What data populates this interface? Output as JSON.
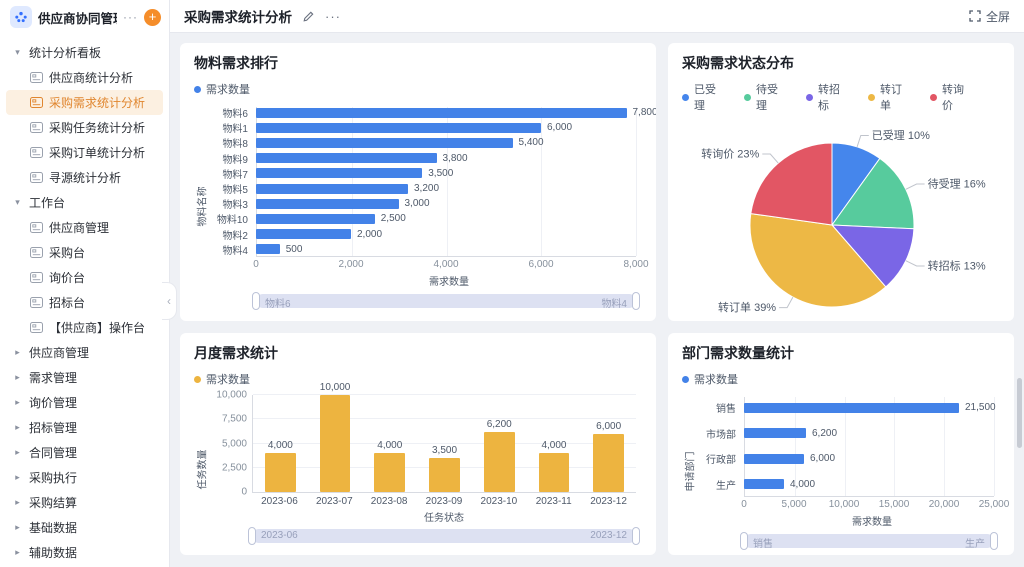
{
  "sidebar": {
    "app_title": "供应商协同管理...",
    "more": "···",
    "add": "+",
    "items": [
      {
        "label": "统计分析看板",
        "kind": "group",
        "expanded": true
      },
      {
        "label": "供应商统计分析",
        "kind": "leaf"
      },
      {
        "label": "采购需求统计分析",
        "kind": "leaf",
        "active": true
      },
      {
        "label": "采购任务统计分析",
        "kind": "leaf"
      },
      {
        "label": "采购订单统计分析",
        "kind": "leaf"
      },
      {
        "label": "寻源统计分析",
        "kind": "leaf"
      },
      {
        "label": "工作台",
        "kind": "group",
        "expanded": true
      },
      {
        "label": "供应商管理",
        "kind": "leaf"
      },
      {
        "label": "采购台",
        "kind": "leaf"
      },
      {
        "label": "询价台",
        "kind": "leaf"
      },
      {
        "label": "招标台",
        "kind": "leaf"
      },
      {
        "label": "【供应商】操作台",
        "kind": "leaf"
      },
      {
        "label": "供应商管理",
        "kind": "group",
        "expanded": false
      },
      {
        "label": "需求管理",
        "kind": "group",
        "expanded": false
      },
      {
        "label": "询价管理",
        "kind": "group",
        "expanded": false
      },
      {
        "label": "招标管理",
        "kind": "group",
        "expanded": false
      },
      {
        "label": "合同管理",
        "kind": "group",
        "expanded": false
      },
      {
        "label": "采购执行",
        "kind": "group",
        "expanded": false
      },
      {
        "label": "采购结算",
        "kind": "group",
        "expanded": false
      },
      {
        "label": "基础数据",
        "kind": "group",
        "expanded": false
      },
      {
        "label": "辅助数据",
        "kind": "group",
        "expanded": false
      }
    ]
  },
  "header": {
    "title": "采购需求统计分析",
    "more": "···",
    "fullscreen_label": "全屏"
  },
  "icons": {
    "collapse": "‹"
  },
  "colors": {
    "accent_orange": "#f58d2a",
    "active_item_bg": "#fcf0e1",
    "active_item_text": "#e0862f",
    "bar_blue": "#4382e8",
    "bar_yellow": "#edb440"
  },
  "chart_data": [
    {
      "type": "bar",
      "orientation": "horizontal",
      "title": "物料需求排行",
      "legend": [
        {
          "label": "需求数量",
          "color": "#4382e8"
        }
      ],
      "color": "#4382e8",
      "categories": [
        "物料6",
        "物料1",
        "物料8",
        "物料9",
        "物料7",
        "物料5",
        "物料3",
        "物料10",
        "物料2",
        "物料4"
      ],
      "values": [
        7800,
        6000,
        5400,
        3800,
        3500,
        3200,
        3000,
        2500,
        2000,
        500
      ],
      "xlabel": "需求数量",
      "ylabel": "物料名称",
      "xlim": [
        0,
        8000
      ],
      "xticks": [
        0,
        2000,
        4000,
        6000,
        8000
      ],
      "grid": true,
      "slider": {
        "start": "物料6",
        "end": "物料4"
      }
    },
    {
      "type": "pie",
      "title": "采购需求状态分布",
      "legend_position": "top",
      "slices": [
        {
          "label": "已受理",
          "pct": 10,
          "color": "#4586ec"
        },
        {
          "label": "待受理",
          "pct": 16,
          "color": "#57cb9d"
        },
        {
          "label": "转招标",
          "pct": 13,
          "color": "#7a66e6"
        },
        {
          "label": "转订单",
          "pct": 39,
          "color": "#edb845"
        },
        {
          "label": "转询价",
          "pct": 23,
          "color": "#e25664"
        }
      ]
    },
    {
      "type": "bar",
      "orientation": "vertical",
      "title": "月度需求统计",
      "legend": [
        {
          "label": "需求数量",
          "color": "#edb440"
        }
      ],
      "color": "#edb440",
      "categories": [
        "2023-06",
        "2023-07",
        "2023-08",
        "2023-09",
        "2023-10",
        "2023-11",
        "2023-12"
      ],
      "values": [
        4000,
        10000,
        4000,
        3500,
        6200,
        4000,
        6000
      ],
      "xlabel": "任务状态",
      "ylabel": "任务数量",
      "ylim": [
        0,
        10000
      ],
      "yticks": [
        0,
        2500,
        5000,
        7500,
        10000
      ],
      "grid": true,
      "slider": {
        "start": "2023-06",
        "end": "2023-12"
      }
    },
    {
      "type": "bar",
      "orientation": "horizontal",
      "title": "部门需求数量统计",
      "legend": [
        {
          "label": "需求数量",
          "color": "#4382e8"
        }
      ],
      "color": "#4382e8",
      "categories": [
        "销售",
        "市场部",
        "行政部",
        "生产"
      ],
      "values": [
        21500,
        6200,
        6000,
        4000
      ],
      "xlabel": "需求数量",
      "ylabel": "申请部门",
      "xlim": [
        0,
        25000
      ],
      "xticks": [
        0,
        5000,
        10000,
        15000,
        20000,
        25000
      ],
      "grid": true,
      "slider": {
        "start": "销售",
        "end": "生产"
      }
    }
  ]
}
